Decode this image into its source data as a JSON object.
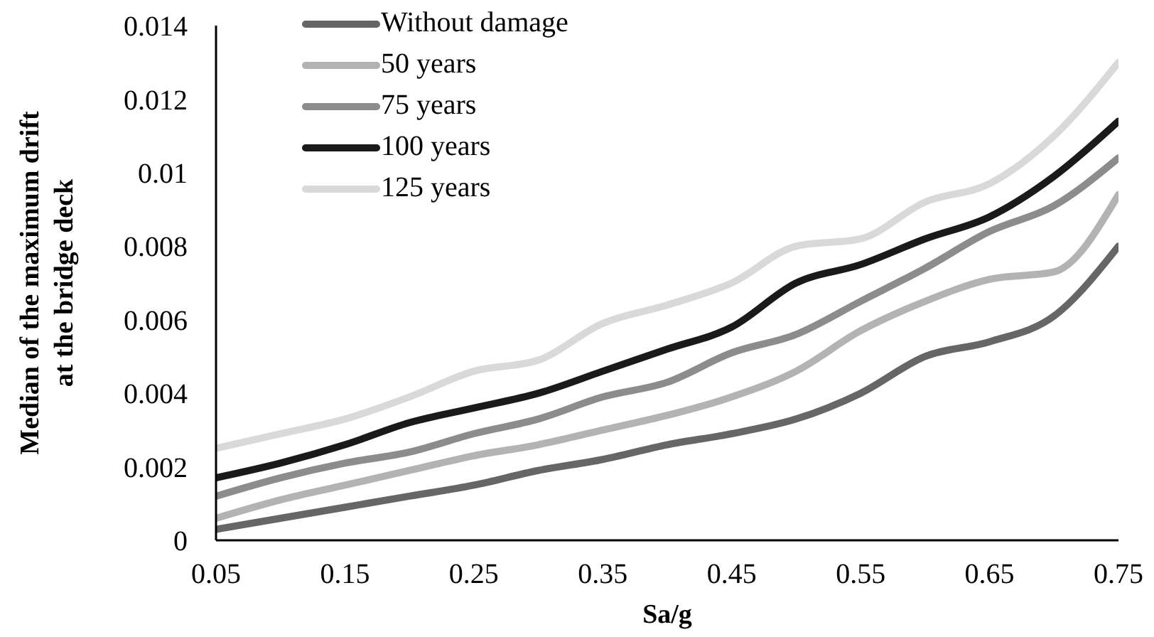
{
  "chart_data": {
    "type": "line",
    "xlabel": "Sa/g",
    "ylabel": "Median of the maximum drift\nat the bridge deck",
    "x": [
      0.05,
      0.1,
      0.15,
      0.2,
      0.25,
      0.3,
      0.35,
      0.4,
      0.45,
      0.5,
      0.55,
      0.6,
      0.65,
      0.7,
      0.75
    ],
    "series": [
      {
        "name": "Without damage",
        "color": "#666666",
        "values": [
          0.0003,
          0.0006,
          0.0009,
          0.0012,
          0.0015,
          0.0019,
          0.0022,
          0.0026,
          0.0029,
          0.0033,
          0.004,
          0.005,
          0.0054,
          0.0061,
          0.008
        ]
      },
      {
        "name": "50 years",
        "color": "#b3b3b3",
        "values": [
          0.0006,
          0.0011,
          0.0015,
          0.0019,
          0.0023,
          0.0026,
          0.003,
          0.0034,
          0.0039,
          0.0046,
          0.0057,
          0.0065,
          0.0071,
          0.0073,
          0.0094
        ]
      },
      {
        "name": "75 years",
        "color": "#8c8c8c",
        "values": [
          0.0012,
          0.0017,
          0.0021,
          0.0024,
          0.0029,
          0.0033,
          0.0039,
          0.0043,
          0.0051,
          0.0056,
          0.0065,
          0.0074,
          0.0084,
          0.0091,
          0.0104
        ]
      },
      {
        "name": "100 years",
        "color": "#1a1a1a",
        "values": [
          0.0017,
          0.0021,
          0.0026,
          0.0032,
          0.0036,
          0.004,
          0.0046,
          0.0052,
          0.0058,
          0.007,
          0.0075,
          0.0082,
          0.0088,
          0.0099,
          0.0114
        ]
      },
      {
        "name": "125 years",
        "color": "#d9d9d9",
        "values": [
          0.0025,
          0.0029,
          0.0033,
          0.0039,
          0.0046,
          0.0049,
          0.0059,
          0.0064,
          0.007,
          0.008,
          0.0082,
          0.0092,
          0.0097,
          0.011,
          0.013
        ]
      }
    ],
    "xlim": [
      0.05,
      0.75
    ],
    "xticks": [
      0.05,
      0.15,
      0.25,
      0.35,
      0.45,
      0.55,
      0.65,
      0.75
    ],
    "ylim": [
      0,
      0.014
    ],
    "yticks": [
      0,
      0.002,
      0.004,
      0.006,
      0.008,
      0.01,
      0.012,
      0.014
    ],
    "grid": false,
    "legend": "top left",
    "marker": "none",
    "line_style": "solid"
  }
}
